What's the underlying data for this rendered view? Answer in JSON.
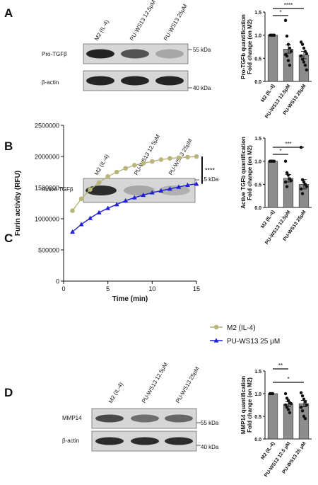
{
  "panels": {
    "A": {
      "letter": "A",
      "lanes": [
        "M2 (IL-4)",
        "PU-WS13 12.5μM",
        "PU-WS13 25μM"
      ],
      "rows": [
        {
          "label": "Pro-TGFβ",
          "marker": "55 kDa",
          "intensities": [
            0.95,
            0.7,
            0.25
          ]
        },
        {
          "label": "β-actin",
          "marker": "40 kDa",
          "intensities": [
            0.95,
            0.95,
            0.95
          ]
        }
      ]
    },
    "B": {
      "letter": "B",
      "lanes": [
        "M2 (IL-4)",
        "PU-WS13 12.5μM",
        "PU-WS13 25μM"
      ],
      "rows": [
        {
          "label": "Active TGFβ",
          "marker": "15 kDa",
          "intensities": [
            0.9,
            0.25,
            0.2
          ]
        }
      ]
    },
    "C": {
      "letter": "C"
    },
    "D": {
      "letter": "D",
      "lanes": [
        "M2 (IL-4)",
        "PU-WS13 12.5μM",
        "PU-WS13 25μM"
      ],
      "rows": [
        {
          "label": "MMP14",
          "marker": "55 kDa",
          "intensities": [
            0.75,
            0.55,
            0.6
          ]
        },
        {
          "label": "β-actin",
          "marker": "40 kDa",
          "intensities": [
            0.9,
            0.9,
            0.9
          ]
        }
      ]
    }
  },
  "colors": {
    "bar": "#8c8c8c",
    "m2_line": "#b8b47a",
    "pu_line": "#1f1fd9",
    "blot_bg": "#d6d6d6",
    "band": "#1a1a1a"
  },
  "chart_data": [
    {
      "type": "bar",
      "panel": "A",
      "ylabel": "Pro-TGFb quantification\nFold change (on M2)",
      "categories": [
        "M2 (IL-4)",
        "PU-WS13 12.5μM",
        "PU-WS13 25μM"
      ],
      "values": [
        1.0,
        0.7,
        0.57
      ],
      "errors": [
        0.0,
        0.09,
        0.08
      ],
      "points": [
        [
          1.0,
          1.0,
          1.0,
          1.0
        ],
        [
          1.32,
          0.98,
          0.8,
          0.72,
          0.65,
          0.58,
          0.55,
          0.45,
          0.35
        ],
        [
          0.85,
          0.8,
          0.72,
          0.65,
          0.6,
          0.55,
          0.48,
          0.42,
          0.35,
          0.25
        ]
      ],
      "ylim": [
        0,
        1.5
      ],
      "yticks": [
        "0.0",
        "0.5",
        "1.0",
        "1.5"
      ],
      "significance": [
        {
          "from": 0,
          "to": 1,
          "label": "*"
        },
        {
          "from": 0,
          "to": 2,
          "label": "****"
        }
      ]
    },
    {
      "type": "bar",
      "panel": "B",
      "ylabel": "Active TGFb quantification\nFold change (on M2)",
      "categories": [
        "M2 (IL-4)",
        "PU-WS13 12.5μM",
        "PU-WS13 25μM"
      ],
      "values": [
        1.0,
        0.63,
        0.5
      ],
      "errors": [
        0.0,
        0.08,
        0.1
      ],
      "points": [
        [
          1.0,
          1.0,
          1.0,
          1.0
        ],
        [
          1.0,
          0.75,
          0.7,
          0.62,
          0.58,
          0.55,
          0.45
        ],
        [
          1.3,
          0.6,
          0.55,
          0.5,
          0.45,
          0.4,
          0.3
        ]
      ],
      "ylim": [
        0,
        1.5
      ],
      "yticks": [
        "0.0",
        "0.5",
        "1.0",
        "1.5"
      ],
      "significance": [
        {
          "from": 0,
          "to": 1,
          "label": "*"
        },
        {
          "from": 0,
          "to": 2,
          "label": "***"
        }
      ]
    },
    {
      "type": "line",
      "panel": "C",
      "xlabel": "Time (min)",
      "ylabel": "Furin activity (RFU)",
      "xlim": [
        0,
        15
      ],
      "ylim": [
        0,
        2500000
      ],
      "xticks": [
        "0",
        "5",
        "10",
        "15"
      ],
      "yticks": [
        "0",
        "500000",
        "1000000",
        "1500000",
        "2000000",
        "2500000"
      ],
      "x": [
        1,
        2,
        3,
        4,
        5,
        6,
        7,
        8,
        9,
        10,
        11,
        12,
        13,
        14,
        15
      ],
      "series": [
        {
          "name": "M2 (IL-4)",
          "marker": "circle",
          "values": [
            1130000,
            1320000,
            1470000,
            1580000,
            1680000,
            1750000,
            1810000,
            1860000,
            1890000,
            1920000,
            1950000,
            1970000,
            1980000,
            1990000,
            2000000
          ]
        },
        {
          "name": "PU-WS13 25 μM",
          "marker": "triangle",
          "values": [
            790000,
            910000,
            1010000,
            1100000,
            1170000,
            1230000,
            1290000,
            1340000,
            1380000,
            1420000,
            1450000,
            1480000,
            1510000,
            1540000,
            1560000
          ]
        }
      ],
      "significance": "****",
      "legend_position": "right"
    },
    {
      "type": "bar",
      "panel": "D",
      "ylabel": "MMP14 quantification\nFold change (on M2)",
      "categories": [
        "M2 (IL-4)",
        "PU-WS13 12.5 μM",
        "PU-WS13 25 μM"
      ],
      "values": [
        1.0,
        0.77,
        0.78
      ],
      "errors": [
        0.0,
        0.05,
        0.07
      ],
      "points": [
        [
          1.0,
          1.0,
          1.0
        ],
        [
          1.0,
          0.9,
          0.85,
          0.8,
          0.78,
          0.75,
          0.7,
          0.65,
          0.58
        ],
        [
          1.02,
          0.95,
          0.88,
          0.82,
          0.75,
          0.7,
          0.62,
          0.5,
          0.45
        ]
      ],
      "ylim": [
        0,
        1.5
      ],
      "yticks": [
        "0.0",
        "0.5",
        "1.0",
        "1.5"
      ],
      "significance": [
        {
          "from": 0,
          "to": 1,
          "label": "**"
        },
        {
          "from": 0,
          "to": 2,
          "label": "*"
        }
      ]
    }
  ]
}
